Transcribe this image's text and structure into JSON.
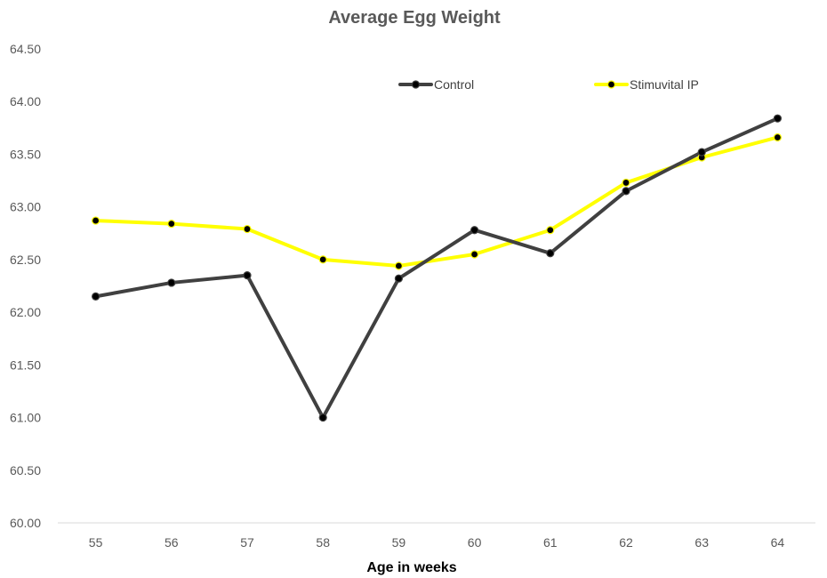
{
  "chart_data": {
    "type": "line",
    "title": "Average Egg Weight",
    "xlabel": "Age in weeks",
    "ylabel": "",
    "categories": [
      "55",
      "56",
      "57",
      "58",
      "59",
      "60",
      "61",
      "62",
      "63",
      "64"
    ],
    "ylim": [
      60.0,
      64.5
    ],
    "yticks": [
      "60.00",
      "60.50",
      "61.00",
      "61.50",
      "62.00",
      "62.50",
      "63.00",
      "63.50",
      "64.00",
      "64.50"
    ],
    "grid": false,
    "legend": "top",
    "series": [
      {
        "name": "Control",
        "color": "#404040",
        "values": [
          62.15,
          62.28,
          62.35,
          61.0,
          62.32,
          62.78,
          62.56,
          63.15,
          63.52,
          63.84
        ]
      },
      {
        "name": "Stimuvital IP",
        "color": "#ffff00",
        "values": [
          62.87,
          62.84,
          62.79,
          62.5,
          62.44,
          62.55,
          62.78,
          63.23,
          63.47,
          63.66
        ]
      }
    ]
  }
}
